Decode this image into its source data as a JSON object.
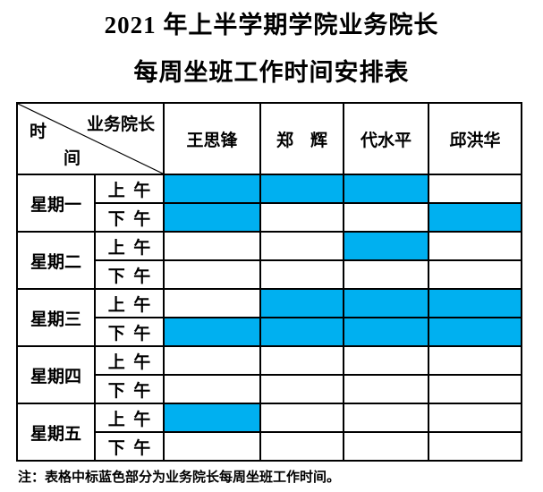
{
  "header": {
    "line1": "2021 年上半学期学院业务院长",
    "line2": "每周坐班工作时间安排表"
  },
  "table": {
    "corner": {
      "top_right": "业务院长",
      "left_top": "时",
      "left_bottom": "间"
    },
    "deans": [
      "王思锋",
      "郑　辉",
      "代水平",
      "邱洪华"
    ],
    "days": [
      {
        "label": "星期一",
        "periods": [
          {
            "label": "上 午",
            "cells": [
              true,
              true,
              true,
              false
            ]
          },
          {
            "label": "下 午",
            "cells": [
              true,
              false,
              false,
              true
            ]
          }
        ]
      },
      {
        "label": "星期二",
        "periods": [
          {
            "label": "上 午",
            "cells": [
              false,
              false,
              true,
              false
            ]
          },
          {
            "label": "下 午",
            "cells": [
              false,
              false,
              false,
              false
            ]
          }
        ]
      },
      {
        "label": "星期三",
        "periods": [
          {
            "label": "上 午",
            "cells": [
              false,
              true,
              true,
              true
            ]
          },
          {
            "label": "下 午",
            "cells": [
              true,
              true,
              true,
              true
            ]
          }
        ]
      },
      {
        "label": "星期四",
        "periods": [
          {
            "label": "上 午",
            "cells": [
              false,
              false,
              false,
              false
            ]
          },
          {
            "label": "下 午",
            "cells": [
              false,
              false,
              false,
              false
            ]
          }
        ]
      },
      {
        "label": "星期五",
        "periods": [
          {
            "label": "上 午",
            "cells": [
              true,
              false,
              false,
              false
            ]
          },
          {
            "label": "下 午",
            "cells": [
              false,
              false,
              false,
              false
            ]
          }
        ]
      }
    ]
  },
  "footnote": "注：表格中标蓝色部分为业务院长每周坐班工作时间。",
  "colors": {
    "highlight": "#00B0F0",
    "border": "#000000",
    "background": "#FFFFFF"
  }
}
